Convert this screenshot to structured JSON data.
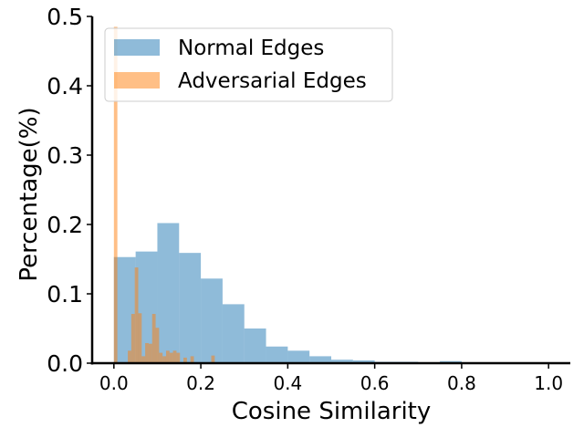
{
  "chart_data": {
    "type": "histogram",
    "xlabel": "Cosine Similarity",
    "ylabel": "Percentage(%)",
    "xlim": [
      -0.05,
      1.05
    ],
    "ylim": [
      0,
      0.5
    ],
    "xticks": [
      {
        "value": 0.0,
        "label": "0.0"
      },
      {
        "value": 0.2,
        "label": "0.2"
      },
      {
        "value": 0.4,
        "label": "0.4"
      },
      {
        "value": 0.6,
        "label": "0.6"
      },
      {
        "value": 0.8,
        "label": "0.8"
      },
      {
        "value": 1.0,
        "label": "1.0"
      }
    ],
    "yticks": [
      {
        "value": 0.0,
        "label": "0.0"
      },
      {
        "value": 0.1,
        "label": "0.1"
      },
      {
        "value": 0.2,
        "label": "0.2"
      },
      {
        "value": 0.3,
        "label": "0.3"
      },
      {
        "value": 0.4,
        "label": "0.4"
      },
      {
        "value": 0.5,
        "label": "0.5"
      }
    ],
    "legend_position": "top-left",
    "series": [
      {
        "name": "Normal Edges",
        "color": "#1f77b4",
        "bins": [
          {
            "x0": 0.0,
            "x1": 0.05,
            "y": 0.153
          },
          {
            "x0": 0.05,
            "x1": 0.1,
            "y": 0.161
          },
          {
            "x0": 0.1,
            "x1": 0.15,
            "y": 0.202
          },
          {
            "x0": 0.15,
            "x1": 0.2,
            "y": 0.159
          },
          {
            "x0": 0.2,
            "x1": 0.25,
            "y": 0.122
          },
          {
            "x0": 0.25,
            "x1": 0.3,
            "y": 0.085
          },
          {
            "x0": 0.3,
            "x1": 0.35,
            "y": 0.05
          },
          {
            "x0": 0.35,
            "x1": 0.4,
            "y": 0.024
          },
          {
            "x0": 0.4,
            "x1": 0.45,
            "y": 0.018
          },
          {
            "x0": 0.45,
            "x1": 0.5,
            "y": 0.01
          },
          {
            "x0": 0.5,
            "x1": 0.55,
            "y": 0.005
          },
          {
            "x0": 0.55,
            "x1": 0.6,
            "y": 0.004
          },
          {
            "x0": 0.6,
            "x1": 0.65,
            "y": 0.002
          },
          {
            "x0": 0.65,
            "x1": 0.7,
            "y": 0.002
          },
          {
            "x0": 0.7,
            "x1": 0.75,
            "y": 0.001
          },
          {
            "x0": 0.75,
            "x1": 0.8,
            "y": 0.003
          },
          {
            "x0": 0.8,
            "x1": 0.85,
            "y": 0.001
          },
          {
            "x0": 0.85,
            "x1": 0.9,
            "y": 0.0
          },
          {
            "x0": 0.9,
            "x1": 0.95,
            "y": 0.0
          },
          {
            "x0": 0.95,
            "x1": 1.0,
            "y": 0.0
          }
        ]
      },
      {
        "name": "Adversarial Edges",
        "color": "#ff7f0e",
        "bins": [
          {
            "x0": 0.0,
            "x1": 0.008,
            "y": 0.485
          },
          {
            "x0": 0.032,
            "x1": 0.04,
            "y": 0.018
          },
          {
            "x0": 0.04,
            "x1": 0.048,
            "y": 0.071
          },
          {
            "x0": 0.048,
            "x1": 0.056,
            "y": 0.138
          },
          {
            "x0": 0.056,
            "x1": 0.064,
            "y": 0.072
          },
          {
            "x0": 0.064,
            "x1": 0.072,
            "y": 0.01
          },
          {
            "x0": 0.072,
            "x1": 0.08,
            "y": 0.029
          },
          {
            "x0": 0.08,
            "x1": 0.088,
            "y": 0.028
          },
          {
            "x0": 0.088,
            "x1": 0.096,
            "y": 0.071
          },
          {
            "x0": 0.096,
            "x1": 0.104,
            "y": 0.051
          },
          {
            "x0": 0.104,
            "x1": 0.112,
            "y": 0.015
          },
          {
            "x0": 0.112,
            "x1": 0.12,
            "y": 0.01
          },
          {
            "x0": 0.12,
            "x1": 0.128,
            "y": 0.018
          },
          {
            "x0": 0.128,
            "x1": 0.136,
            "y": 0.015
          },
          {
            "x0": 0.136,
            "x1": 0.144,
            "y": 0.018
          },
          {
            "x0": 0.144,
            "x1": 0.152,
            "y": 0.015
          },
          {
            "x0": 0.16,
            "x1": 0.168,
            "y": 0.008
          },
          {
            "x0": 0.176,
            "x1": 0.184,
            "y": 0.01
          },
          {
            "x0": 0.224,
            "x1": 0.232,
            "y": 0.011
          }
        ]
      }
    ]
  }
}
